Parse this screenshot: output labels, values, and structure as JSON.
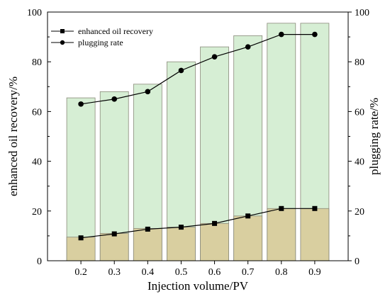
{
  "chart_data": {
    "type": "bar",
    "categories": [
      "0.2",
      "0.3",
      "0.4",
      "0.5",
      "0.6",
      "0.7",
      "0.8",
      "0.9"
    ],
    "bars": {
      "plugging_rate_bars": [
        65.5,
        68,
        71,
        80,
        86,
        90.5,
        95.5,
        95.5
      ],
      "enhanced_oil_recovery_bars": [
        9.5,
        11,
        13,
        13.5,
        15,
        18,
        21,
        21
      ]
    },
    "series": [
      {
        "name": "enhanced oil recovery",
        "axis": "left",
        "marker": "square",
        "values": [
          9.2,
          10.8,
          12.7,
          13.5,
          15.0,
          18.0,
          21.0,
          21.0
        ]
      },
      {
        "name": "plugging rate",
        "axis": "right",
        "marker": "circle",
        "values": [
          63.0,
          65.0,
          68.0,
          76.5,
          82.0,
          86.0,
          91.0,
          91.0
        ]
      }
    ],
    "xlabel": "Injection volume/PV",
    "ylabel": "enhanced oil recovery/%",
    "y2label": "plugging rate/%",
    "ylim": [
      0,
      100
    ],
    "y2lim": [
      0,
      100
    ],
    "xlim": [
      0.1,
      1.0
    ],
    "yticks": [
      "0",
      "20",
      "40",
      "60",
      "80",
      "100"
    ],
    "y2ticks": [
      "0",
      "20",
      "40",
      "60",
      "80",
      "100"
    ],
    "legend_position": "top-left",
    "grid": false,
    "colors": {
      "plugging_bar_fill": "#d6eed4",
      "recovery_bar_fill": "#d9cfa0",
      "bar_edge": "#8a8a7a",
      "line": "#000000"
    }
  }
}
